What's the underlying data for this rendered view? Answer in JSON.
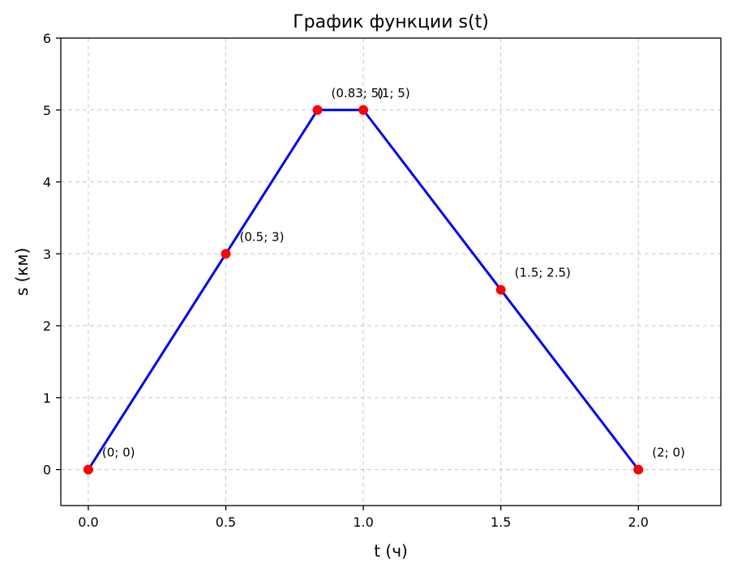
{
  "chart_data": {
    "type": "line",
    "title": "График функции s(t)",
    "xlabel": "t (ч)",
    "ylabel": "s (км)",
    "xlim": [
      -0.1,
      2.3
    ],
    "ylim": [
      -0.5,
      6
    ],
    "xticks": [
      0.0,
      0.5,
      1.0,
      1.5,
      2.0
    ],
    "xtick_labels": [
      "0.0",
      "0.5",
      "1.0",
      "1.5",
      "2.0"
    ],
    "yticks": [
      0,
      1,
      2,
      3,
      4,
      5,
      6
    ],
    "ytick_labels": [
      "0",
      "1",
      "2",
      "3",
      "4",
      "5",
      "6"
    ],
    "grid": true,
    "line_color": "#0000ee",
    "marker_color": "#ff0000",
    "series": [
      {
        "x": [
          0,
          0.5,
          0.8333,
          1.0,
          1.5,
          2.0
        ],
        "y": [
          0,
          3,
          5,
          5,
          2.5,
          0
        ]
      }
    ],
    "annotations": [
      {
        "text": "(0; 0)",
        "x": 0,
        "y": 0
      },
      {
        "text": "(0.5; 3)",
        "x": 0.5,
        "y": 3
      },
      {
        "text": "(0.83; 5)",
        "x": 0.8333,
        "y": 5
      },
      {
        "text": "(1; 5)",
        "x": 1.0,
        "y": 5
      },
      {
        "text": "(1.5; 2.5)",
        "x": 1.5,
        "y": 2.5
      },
      {
        "text": "(2; 0)",
        "x": 2.0,
        "y": 0
      }
    ]
  }
}
